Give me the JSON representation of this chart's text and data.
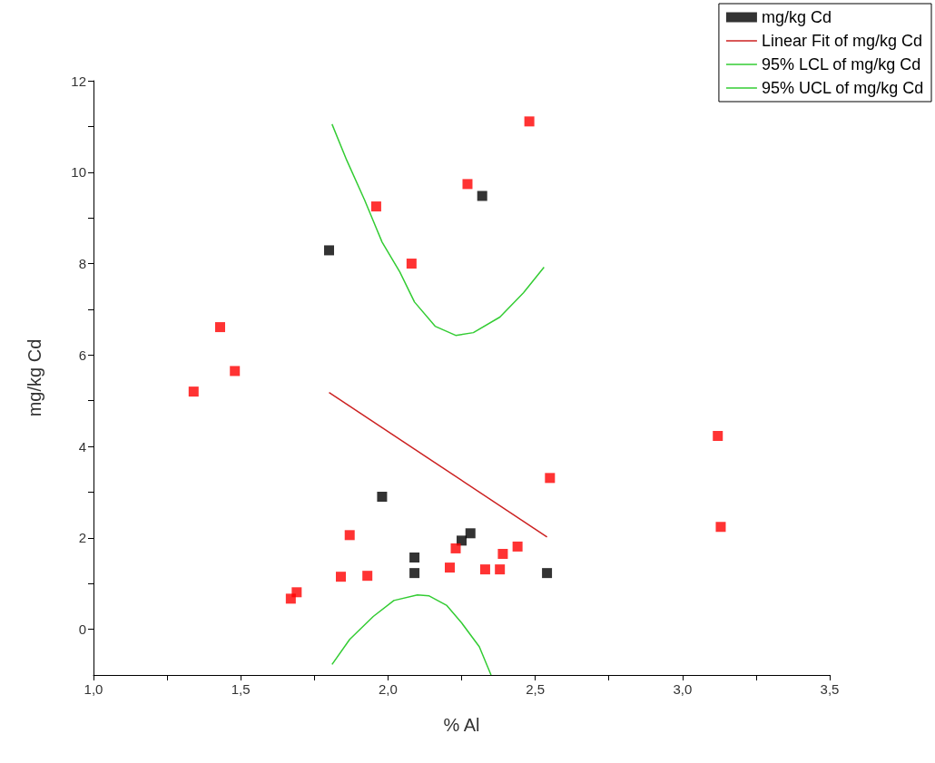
{
  "chart_data": {
    "type": "scatter",
    "xlabel": "% Al",
    "ylabel": "mg/kg Cd",
    "xlim": [
      1.0,
      3.5
    ],
    "ylim": [
      -1,
      12
    ],
    "xticks": [
      {
        "value": 1.0,
        "label": "1,0"
      },
      {
        "value": 1.25,
        "label": null
      },
      {
        "value": 1.5,
        "label": "1,5"
      },
      {
        "value": 1.75,
        "label": null
      },
      {
        "value": 2.0,
        "label": "2,0"
      },
      {
        "value": 2.25,
        "label": null
      },
      {
        "value": 2.5,
        "label": "2,5"
      },
      {
        "value": 2.75,
        "label": null
      },
      {
        "value": 3.0,
        "label": "3,0"
      },
      {
        "value": 3.25,
        "label": null
      },
      {
        "value": 3.5,
        "label": "3,5"
      }
    ],
    "yticks": [
      0,
      {
        "value": 1,
        "label": null
      },
      2,
      {
        "value": 3,
        "label": null
      },
      4,
      {
        "value": 5,
        "label": null
      },
      6,
      {
        "value": 7,
        "label": null
      },
      8,
      {
        "value": 9,
        "label": null
      },
      10,
      {
        "value": 11,
        "label": null
      },
      12
    ],
    "line_style": "solid",
    "grid": false,
    "legend": "top right",
    "series": [
      {
        "name": "mg/kg Cd",
        "marker": "square",
        "color": "#000000",
        "x": [
          1.8,
          2.32,
          1.98,
          2.09,
          2.09,
          2.25,
          2.28,
          2.54
        ],
        "values": [
          8.29,
          9.48,
          2.9,
          1.57,
          1.23,
          1.94,
          2.1,
          1.23
        ]
      },
      {
        "marker": "square",
        "color": "#ff0000",
        "x": [
          2.48,
          2.27,
          1.96,
          2.08,
          1.43,
          1.48,
          1.34,
          2.55,
          1.87,
          1.84,
          1.93,
          1.69,
          1.67,
          2.23,
          2.21,
          2.33,
          2.38,
          2.39,
          2.44,
          3.12,
          3.13
        ],
        "values": [
          11.11,
          9.74,
          9.25,
          8.0,
          6.61,
          5.65,
          5.2,
          3.31,
          2.06,
          1.15,
          1.17,
          0.81,
          0.67,
          1.77,
          1.35,
          1.31,
          1.31,
          1.65,
          1.81,
          4.23,
          2.24
        ]
      },
      {
        "name": "Linear Fit of mg/kg Cd",
        "type": "line",
        "marker": "none",
        "color": "#cc2020",
        "x": [
          1.8,
          2.54
        ],
        "values": [
          5.18,
          2.02
        ]
      },
      {
        "name": "95% LCL of mg/kg Cd",
        "type": "line",
        "marker": "none",
        "color": "#33cc33",
        "x": [
          1.81,
          1.87,
          1.95,
          2.02,
          2.1,
          2.14,
          2.2,
          2.25,
          2.31,
          2.35
        ],
        "values": [
          -0.77,
          -0.22,
          0.28,
          0.63,
          0.75,
          0.73,
          0.52,
          0.14,
          -0.38,
          -1.0
        ]
      },
      {
        "name": "95% UCL of mg/kg Cd",
        "type": "line",
        "marker": "none",
        "color": "#33cc33",
        "x": [
          1.81,
          1.86,
          1.92,
          1.98,
          2.04,
          2.09,
          2.16,
          2.23,
          2.29,
          2.38,
          2.46,
          2.53
        ],
        "values": [
          11.05,
          10.26,
          9.4,
          8.47,
          7.82,
          7.16,
          6.63,
          6.43,
          6.49,
          6.83,
          7.36,
          7.92
        ]
      }
    ]
  }
}
